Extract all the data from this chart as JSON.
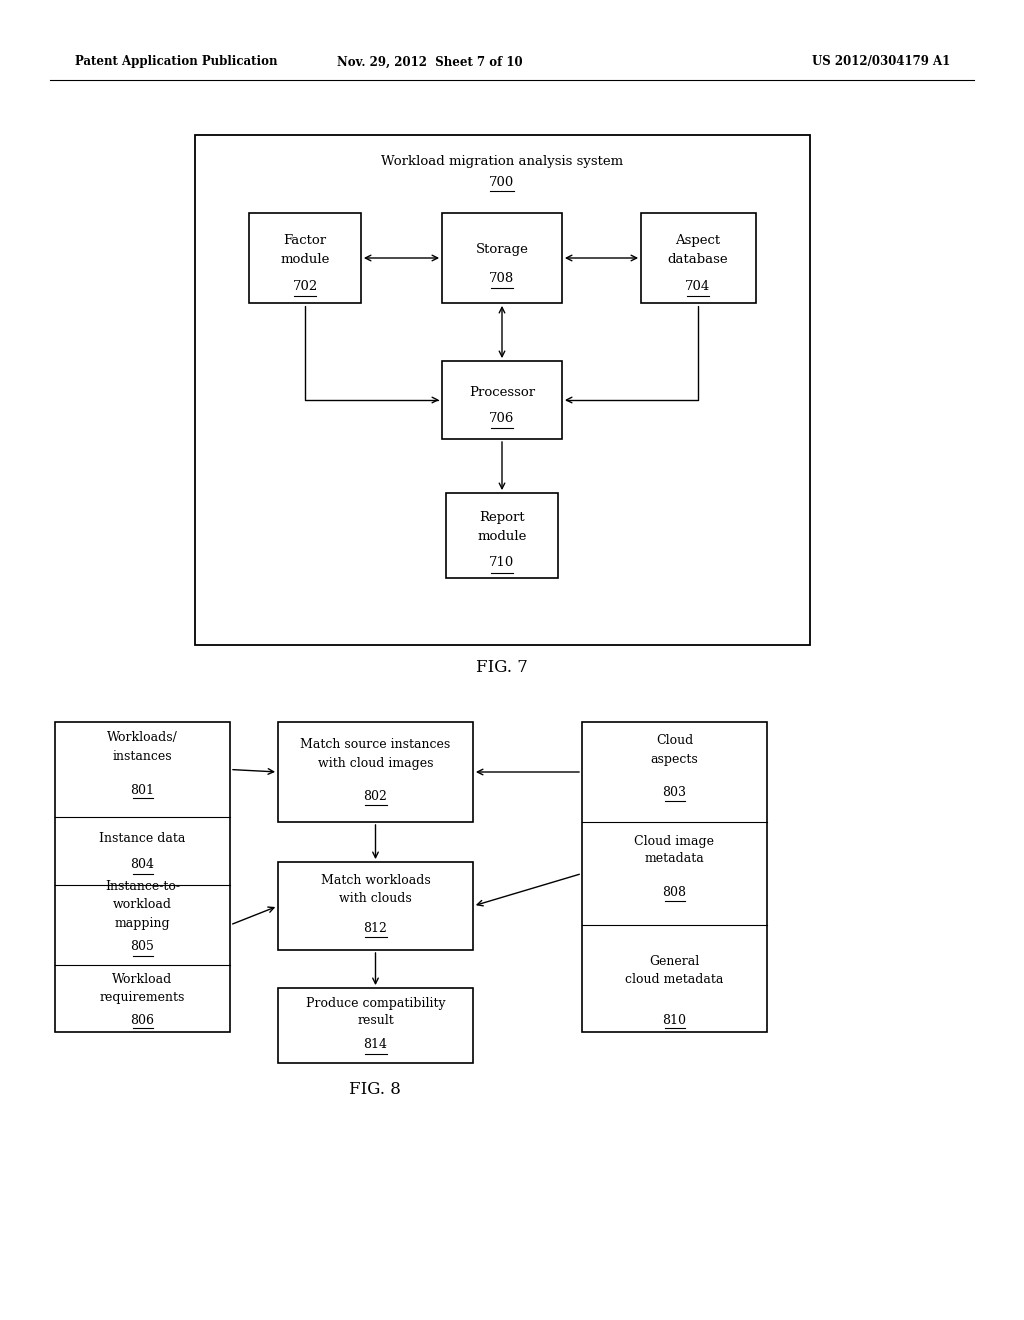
{
  "header_left": "Patent Application Publication",
  "header_mid": "Nov. 29, 2012  Sheet 7 of 10",
  "header_right": "US 2012/0304179 A1",
  "background": "#ffffff"
}
